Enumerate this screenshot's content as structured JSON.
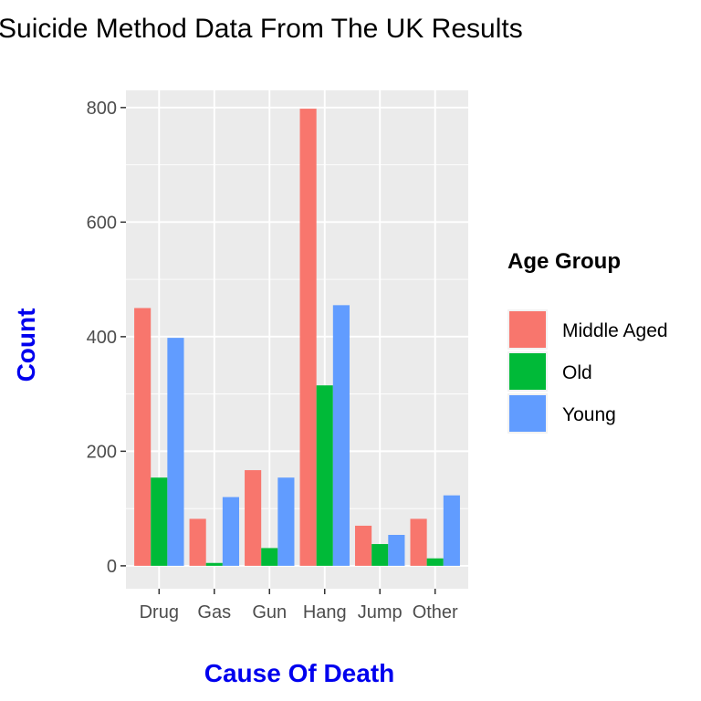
{
  "chart_data": {
    "type": "bar",
    "title": "Suicide Method Data From The UK Results",
    "xlabel": "Cause Of Death",
    "ylabel": "Count",
    "categories": [
      "Drug",
      "Gas",
      "Gun",
      "Hang",
      "Jump",
      "Other"
    ],
    "series": [
      {
        "name": "Middle Aged",
        "color": "#F8766D",
        "values": [
          450,
          82,
          167,
          798,
          70,
          82
        ]
      },
      {
        "name": "Old",
        "color": "#00BA38",
        "values": [
          154,
          5,
          31,
          315,
          38,
          13
        ]
      },
      {
        "name": "Young",
        "color": "#619CFF",
        "values": [
          398,
          120,
          154,
          455,
          54,
          123
        ]
      }
    ],
    "ylim": [
      -40,
      830
    ],
    "yticks": [
      0,
      200,
      400,
      600,
      800
    ],
    "grid": true,
    "legend": {
      "title": "Age Group",
      "position": "right"
    },
    "axis_title_color": "#0000EE",
    "panel_background": "#EBEBEB"
  }
}
